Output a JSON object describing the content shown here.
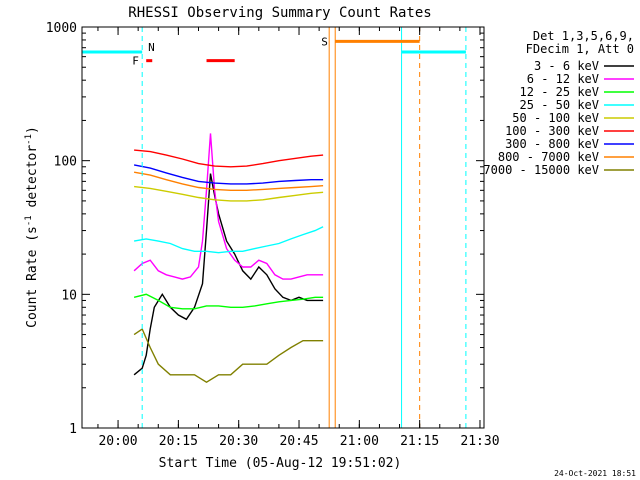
{
  "chart_data": {
    "type": "line",
    "title": "RHESSI Observing Summary Count Rates",
    "xlabel": "Start Time (05-Aug-12 19:51:02)",
    "ylabel": "Count Rate (s",
    "ylabel_sup": "-1",
    "ylabel_tail": " detector",
    "ylabel_tail_sup": "-1",
    "ylabel_close": ")",
    "y_scale": "log",
    "ylim": [
      1,
      1000
    ],
    "xlim": [
      "19:51:02",
      "21:31:00"
    ],
    "x_ticks": [
      "20:00",
      "20:15",
      "20:30",
      "20:45",
      "21:00",
      "21:15",
      "21:30"
    ],
    "y_ticks": [
      "1",
      "10",
      "100",
      "1000"
    ],
    "grid": false,
    "legend_position": "top-right",
    "legend_header": [
      "Det 1,3,5,6,9,",
      "FDecim 1, Att 0"
    ],
    "timestamp": "24-Oct-2021 18:51",
    "flag_labels": {
      "N": "N",
      "F": "F",
      "S": "S"
    },
    "series": [
      {
        "name": "3 - 6 keV",
        "color": "#000000",
        "points": [
          [
            "20:04",
            2.5
          ],
          [
            "20:06",
            2.8
          ],
          [
            "20:07",
            3.5
          ],
          [
            "20:08",
            5.5
          ],
          [
            "20:09",
            8
          ],
          [
            "20:11",
            10
          ],
          [
            "20:13",
            8
          ],
          [
            "20:15",
            7
          ],
          [
            "20:17",
            6.5
          ],
          [
            "20:19",
            8
          ],
          [
            "20:21",
            12
          ],
          [
            "20:22",
            30
          ],
          [
            "20:23",
            80
          ],
          [
            "20:24",
            55
          ],
          [
            "20:25",
            40
          ],
          [
            "20:27",
            25
          ],
          [
            "20:29",
            20
          ],
          [
            "20:31",
            15
          ],
          [
            "20:33",
            13
          ],
          [
            "20:35",
            16
          ],
          [
            "20:37",
            14
          ],
          [
            "20:39",
            11
          ],
          [
            "20:41",
            9.5
          ],
          [
            "20:43",
            9
          ],
          [
            "20:45",
            9.5
          ],
          [
            "20:47",
            9
          ],
          [
            "20:49",
            9
          ],
          [
            "20:51",
            9
          ]
        ]
      },
      {
        "name": "6 - 12 keV",
        "color": "#ff00ff",
        "points": [
          [
            "20:04",
            15
          ],
          [
            "20:06",
            17
          ],
          [
            "20:08",
            18
          ],
          [
            "20:10",
            15
          ],
          [
            "20:12",
            14
          ],
          [
            "20:14",
            13.5
          ],
          [
            "20:16",
            13
          ],
          [
            "20:18",
            13.5
          ],
          [
            "20:20",
            16
          ],
          [
            "20:21",
            25
          ],
          [
            "20:22",
            60
          ],
          [
            "20:23",
            160
          ],
          [
            "20:24",
            60
          ],
          [
            "20:25",
            35
          ],
          [
            "20:27",
            22
          ],
          [
            "20:29",
            18
          ],
          [
            "20:31",
            16
          ],
          [
            "20:33",
            16
          ],
          [
            "20:35",
            18
          ],
          [
            "20:37",
            17
          ],
          [
            "20:39",
            14
          ],
          [
            "20:41",
            13
          ],
          [
            "20:43",
            13
          ],
          [
            "20:45",
            13.5
          ],
          [
            "20:47",
            14
          ],
          [
            "20:49",
            14
          ],
          [
            "20:51",
            14
          ]
        ]
      },
      {
        "name": "12 - 25 keV",
        "color": "#00ff00",
        "points": [
          [
            "20:04",
            9.5
          ],
          [
            "20:07",
            10
          ],
          [
            "20:10",
            9
          ],
          [
            "20:13",
            8
          ],
          [
            "20:16",
            7.8
          ],
          [
            "20:19",
            7.8
          ],
          [
            "20:22",
            8.2
          ],
          [
            "20:25",
            8.2
          ],
          [
            "20:28",
            8
          ],
          [
            "20:31",
            8
          ],
          [
            "20:34",
            8.2
          ],
          [
            "20:37",
            8.5
          ],
          [
            "20:40",
            8.8
          ],
          [
            "20:43",
            9
          ],
          [
            "20:46",
            9.2
          ],
          [
            "20:49",
            9.5
          ],
          [
            "20:51",
            9.5
          ]
        ]
      },
      {
        "name": "25 - 50 keV",
        "color": "#00ffff",
        "points": [
          [
            "20:04",
            25
          ],
          [
            "20:07",
            26
          ],
          [
            "20:10",
            25
          ],
          [
            "20:13",
            24
          ],
          [
            "20:16",
            22
          ],
          [
            "20:19",
            21
          ],
          [
            "20:22",
            21
          ],
          [
            "20:25",
            20.5
          ],
          [
            "20:28",
            21
          ],
          [
            "20:31",
            21
          ],
          [
            "20:34",
            22
          ],
          [
            "20:37",
            23
          ],
          [
            "20:40",
            24
          ],
          [
            "20:43",
            26
          ],
          [
            "20:46",
            28
          ],
          [
            "20:49",
            30
          ],
          [
            "20:51",
            32
          ]
        ]
      },
      {
        "name": "50 - 100 keV",
        "color": "#cccc00",
        "points": [
          [
            "20:04",
            64
          ],
          [
            "20:08",
            62
          ],
          [
            "20:12",
            59
          ],
          [
            "20:16",
            56
          ],
          [
            "20:20",
            53
          ],
          [
            "20:24",
            51
          ],
          [
            "20:28",
            50
          ],
          [
            "20:32",
            50
          ],
          [
            "20:36",
            51
          ],
          [
            "20:40",
            53
          ],
          [
            "20:44",
            55
          ],
          [
            "20:48",
            57
          ],
          [
            "20:51",
            58
          ]
        ]
      },
      {
        "name": "100 - 300 keV",
        "color": "#ff0000",
        "points": [
          [
            "20:04",
            120
          ],
          [
            "20:08",
            117
          ],
          [
            "20:12",
            110
          ],
          [
            "20:16",
            103
          ],
          [
            "20:20",
            95
          ],
          [
            "20:24",
            91
          ],
          [
            "20:28",
            90
          ],
          [
            "20:32",
            91
          ],
          [
            "20:36",
            95
          ],
          [
            "20:40",
            100
          ],
          [
            "20:44",
            104
          ],
          [
            "20:48",
            108
          ],
          [
            "20:51",
            110
          ]
        ]
      },
      {
        "name": "300 - 800 keV",
        "color": "#0000ff",
        "points": [
          [
            "20:04",
            93
          ],
          [
            "20:08",
            88
          ],
          [
            "20:12",
            81
          ],
          [
            "20:16",
            75
          ],
          [
            "20:20",
            70
          ],
          [
            "20:24",
            68
          ],
          [
            "20:28",
            67
          ],
          [
            "20:32",
            67
          ],
          [
            "20:36",
            68
          ],
          [
            "20:40",
            70
          ],
          [
            "20:44",
            71
          ],
          [
            "20:48",
            72
          ],
          [
            "20:51",
            72
          ]
        ]
      },
      {
        "name": "800 - 7000 keV",
        "color": "#ff8000",
        "points": [
          [
            "20:04",
            82
          ],
          [
            "20:08",
            78
          ],
          [
            "20:12",
            72
          ],
          [
            "20:16",
            67
          ],
          [
            "20:20",
            63
          ],
          [
            "20:24",
            61
          ],
          [
            "20:28",
            60
          ],
          [
            "20:32",
            60
          ],
          [
            "20:36",
            61
          ],
          [
            "20:40",
            62
          ],
          [
            "20:44",
            63
          ],
          [
            "20:48",
            64
          ],
          [
            "20:51",
            65
          ]
        ]
      },
      {
        "name": "7000 - 15000 keV",
        "color": "#808000",
        "points": [
          [
            "20:04",
            5
          ],
          [
            "20:06",
            5.5
          ],
          [
            "20:08",
            4
          ],
          [
            "20:10",
            3
          ],
          [
            "20:13",
            2.5
          ],
          [
            "20:16",
            2.5
          ],
          [
            "20:19",
            2.5
          ],
          [
            "20:22",
            2.2
          ],
          [
            "20:25",
            2.5
          ],
          [
            "20:28",
            2.5
          ],
          [
            "20:31",
            3
          ],
          [
            "20:34",
            3
          ],
          [
            "20:37",
            3
          ],
          [
            "20:40",
            3.5
          ],
          [
            "20:43",
            4
          ],
          [
            "20:46",
            4.5
          ],
          [
            "20:49",
            4.5
          ],
          [
            "20:51",
            4.5
          ]
        ]
      }
    ],
    "flags": {
      "night_bars": [
        {
          "start": "19:51:02",
          "end": "20:06:00",
          "value": 650,
          "color": "#00ffff"
        },
        {
          "start": "21:10:30",
          "end": "21:26:30",
          "value": 650,
          "color": "#00ffff"
        }
      ],
      "saa_bar": {
        "start": "20:54:00",
        "end": "21:15:00",
        "value": 780,
        "color": "#ff8000"
      },
      "flare_bars": [
        {
          "start": "20:07:00",
          "end": "20:08:30",
          "value": 560,
          "color": "#ff0000"
        },
        {
          "start": "20:22:00",
          "end": "20:29:00",
          "value": 560,
          "color": "#ff0000"
        }
      ],
      "vertical_lines": [
        {
          "time": "19:51:02",
          "color": "#00ffff",
          "style": "solid"
        },
        {
          "time": "20:06:00",
          "color": "#00ffff",
          "style": "dashed"
        },
        {
          "time": "20:52:30",
          "color": "#ff8000",
          "style": "solid"
        },
        {
          "time": "20:54:00",
          "color": "#ff8000",
          "style": "solid"
        },
        {
          "time": "21:10:30",
          "color": "#00ffff",
          "style": "solid"
        },
        {
          "time": "21:15:00",
          "color": "#ff8000",
          "style": "dashed"
        },
        {
          "time": "21:26:30",
          "color": "#00ffff",
          "style": "dashed"
        }
      ]
    }
  }
}
